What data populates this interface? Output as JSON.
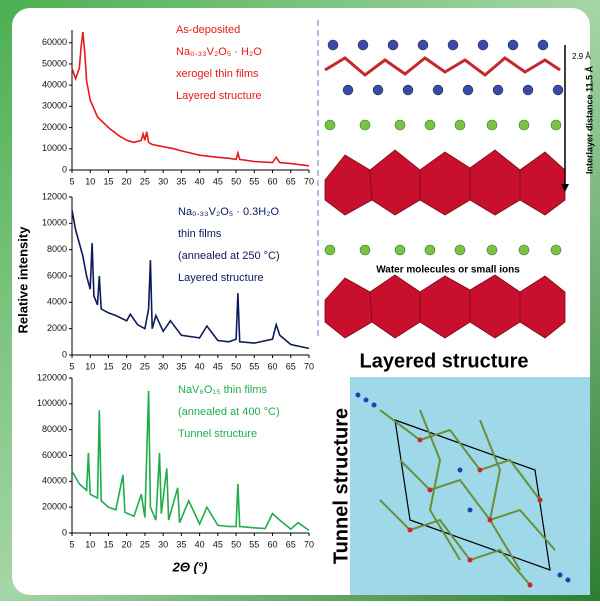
{
  "chart_data": [
    {
      "type": "line",
      "color": "#e8191a",
      "annotations": [
        "As-deposited",
        "Na₀.₃₃V₂O₅ · H₂O",
        "xerogel thin films",
        "Layered structure"
      ],
      "x": [
        5,
        6,
        7,
        7.5,
        8,
        8.5,
        9,
        10,
        12,
        15,
        18,
        20,
        22,
        24,
        24.5,
        25,
        25.5,
        26,
        27,
        30,
        33,
        35,
        40,
        45,
        48,
        50,
        50.5,
        51,
        55,
        60,
        61,
        62,
        65,
        70
      ],
      "values": [
        48000,
        43000,
        48000,
        58000,
        65000,
        55000,
        42000,
        33000,
        25000,
        20000,
        16000,
        14000,
        13000,
        14000,
        17000,
        14000,
        18000,
        13000,
        12000,
        11000,
        10000,
        9000,
        7000,
        6000,
        5500,
        5000,
        8000,
        5000,
        4000,
        3500,
        6000,
        3500,
        3000,
        2000
      ],
      "xlim": [
        5,
        70
      ],
      "xticks": [
        5,
        10,
        15,
        20,
        25,
        30,
        35,
        40,
        45,
        50,
        55,
        60,
        65,
        70
      ],
      "ylim": [
        0,
        66000
      ],
      "yticks": [
        0,
        10000,
        20000,
        30000,
        40000,
        50000,
        60000
      ]
    },
    {
      "type": "line",
      "color": "#0d1a5c",
      "annotations": [
        "Na₀.₃₃V₂O₅ · 0.3H₂O",
        "thin films",
        "(annealed at 250 °C)",
        "Layered structure"
      ],
      "x": [
        5,
        6,
        7,
        8,
        9,
        10,
        10.5,
        11,
        12,
        12.5,
        13,
        15,
        17,
        20,
        21,
        23,
        25,
        26,
        26.5,
        27,
        28,
        30,
        32,
        35,
        40,
        42,
        45,
        48,
        50,
        50.5,
        51,
        55,
        60,
        61,
        62,
        65,
        70
      ],
      "values": [
        11000,
        9500,
        8500,
        7500,
        6000,
        5000,
        8500,
        4500,
        3800,
        6000,
        3500,
        3200,
        3000,
        2600,
        3100,
        2300,
        2000,
        3500,
        7200,
        2000,
        3000,
        1800,
        2600,
        1500,
        1300,
        2200,
        1100,
        1000,
        1200,
        4700,
        1000,
        900,
        1200,
        2300,
        1500,
        800,
        500
      ],
      "xlim": [
        5,
        70
      ],
      "xticks": [
        5,
        10,
        15,
        20,
        25,
        30,
        35,
        40,
        45,
        50,
        55,
        60,
        65,
        70
      ],
      "ylim": [
        0,
        12000
      ],
      "yticks": [
        0,
        2000,
        4000,
        6000,
        8000,
        10000,
        12000
      ]
    },
    {
      "type": "line",
      "color": "#1fad4b",
      "annotations": [
        "NaV₆O₁₅ thin films",
        "(annealed at 400 °C)",
        "Tunnel structure"
      ],
      "x": [
        5,
        7,
        9,
        9.5,
        10,
        12,
        12.5,
        13,
        15,
        17,
        19,
        19.5,
        22,
        24,
        25,
        26,
        26.5,
        28,
        29,
        29.5,
        31,
        31.5,
        34,
        34.5,
        37,
        40,
        42,
        45,
        48,
        50,
        50.5,
        51,
        55,
        58,
        60,
        62,
        65,
        67,
        70
      ],
      "values": [
        48000,
        38000,
        33000,
        62000,
        30000,
        27000,
        95000,
        25000,
        20000,
        18000,
        45000,
        16000,
        13000,
        30000,
        12000,
        110000,
        20000,
        10000,
        62000,
        15000,
        50000,
        10000,
        35000,
        8000,
        25000,
        7000,
        20000,
        6000,
        5000,
        5000,
        38000,
        5000,
        4000,
        3500,
        15000,
        10000,
        3000,
        8000,
        2000
      ],
      "xlim": [
        5,
        70
      ],
      "xticks": [
        5,
        10,
        15,
        20,
        25,
        30,
        35,
        40,
        45,
        50,
        55,
        60,
        65,
        70
      ],
      "ylim": [
        0,
        120000
      ],
      "yticks": [
        0,
        20000,
        40000,
        60000,
        80000,
        100000,
        120000
      ]
    }
  ],
  "figure": {
    "y_label": "Relative intensity",
    "x_label": "2Θ (°)"
  },
  "structures": {
    "spacing": "2.9 Å",
    "interlayer": "Interlayer distance 11.5 Å",
    "ions": "Water molecules or small ions",
    "layered": "Layered structure",
    "tunnel": "Tunnel structure"
  }
}
